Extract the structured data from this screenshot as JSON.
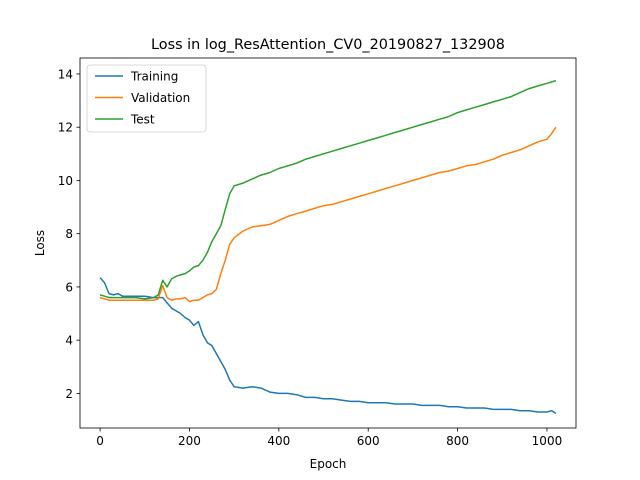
{
  "chart_data": {
    "type": "line",
    "title": "Loss in log_ResAttention_CV0_20190827_132908",
    "xlabel": "Epoch",
    "ylabel": "Loss",
    "xlim": [
      -45,
      1065
    ],
    "ylim": [
      0.7,
      14.6
    ],
    "xticks": [
      0,
      200,
      400,
      600,
      800,
      1000
    ],
    "xtick_labels": [
      "0",
      "200",
      "400",
      "600",
      "800",
      "1000"
    ],
    "yticks": [
      2,
      4,
      6,
      8,
      10,
      12,
      14
    ],
    "ytick_labels": [
      "2",
      "4",
      "6",
      "8",
      "10",
      "12",
      "14"
    ],
    "grid": false,
    "legend_position": "upper-left",
    "series": [
      {
        "name": "Training",
        "color": "#1f77b4",
        "x": [
          0,
          10,
          20,
          30,
          40,
          50,
          60,
          80,
          100,
          120,
          140,
          150,
          160,
          170,
          180,
          190,
          200,
          210,
          220,
          230,
          240,
          250,
          260,
          270,
          280,
          290,
          300,
          320,
          340,
          360,
          380,
          400,
          420,
          440,
          460,
          480,
          500,
          520,
          540,
          560,
          580,
          600,
          620,
          640,
          660,
          680,
          700,
          720,
          740,
          760,
          780,
          800,
          820,
          840,
          860,
          880,
          900,
          920,
          940,
          960,
          980,
          1000,
          1010,
          1020
        ],
        "y": [
          6.35,
          6.15,
          5.75,
          5.7,
          5.75,
          5.65,
          5.65,
          5.65,
          5.65,
          5.6,
          5.6,
          5.4,
          5.2,
          5.1,
          5.0,
          4.85,
          4.75,
          4.55,
          4.7,
          4.2,
          3.9,
          3.8,
          3.5,
          3.2,
          2.9,
          2.5,
          2.25,
          2.2,
          2.25,
          2.2,
          2.05,
          2.0,
          2.0,
          1.95,
          1.85,
          1.85,
          1.8,
          1.8,
          1.75,
          1.7,
          1.7,
          1.65,
          1.65,
          1.65,
          1.6,
          1.6,
          1.6,
          1.55,
          1.55,
          1.55,
          1.5,
          1.5,
          1.45,
          1.45,
          1.45,
          1.4,
          1.4,
          1.4,
          1.35,
          1.35,
          1.3,
          1.3,
          1.35,
          1.25
        ]
      },
      {
        "name": "Validation",
        "color": "#ff7f0e",
        "x": [
          0,
          10,
          20,
          40,
          60,
          80,
          100,
          120,
          130,
          140,
          150,
          160,
          170,
          180,
          190,
          200,
          210,
          220,
          230,
          240,
          250,
          260,
          270,
          280,
          290,
          300,
          320,
          340,
          360,
          380,
          400,
          420,
          440,
          460,
          480,
          500,
          520,
          540,
          560,
          580,
          600,
          620,
          640,
          660,
          680,
          700,
          720,
          740,
          760,
          780,
          800,
          820,
          840,
          860,
          880,
          900,
          920,
          940,
          960,
          980,
          1000,
          1010,
          1020
        ],
        "y": [
          5.6,
          5.55,
          5.5,
          5.5,
          5.5,
          5.5,
          5.5,
          5.5,
          5.55,
          6.05,
          5.6,
          5.5,
          5.55,
          5.55,
          5.6,
          5.45,
          5.5,
          5.5,
          5.6,
          5.7,
          5.75,
          5.9,
          6.5,
          7.0,
          7.6,
          7.85,
          8.1,
          8.25,
          8.3,
          8.35,
          8.5,
          8.65,
          8.75,
          8.85,
          8.95,
          9.05,
          9.1,
          9.2,
          9.3,
          9.4,
          9.5,
          9.6,
          9.7,
          9.8,
          9.9,
          10.0,
          10.1,
          10.2,
          10.3,
          10.35,
          10.45,
          10.55,
          10.6,
          10.7,
          10.8,
          10.95,
          11.05,
          11.15,
          11.3,
          11.45,
          11.55,
          11.75,
          12.0
        ]
      },
      {
        "name": "Test",
        "color": "#2ca02c",
        "x": [
          0,
          10,
          20,
          40,
          60,
          80,
          100,
          120,
          130,
          140,
          150,
          160,
          170,
          180,
          190,
          200,
          210,
          220,
          230,
          240,
          250,
          260,
          270,
          280,
          290,
          300,
          320,
          340,
          360,
          380,
          400,
          420,
          440,
          460,
          480,
          500,
          520,
          540,
          560,
          580,
          600,
          620,
          640,
          660,
          680,
          700,
          720,
          740,
          760,
          780,
          800,
          820,
          840,
          860,
          880,
          900,
          920,
          940,
          960,
          980,
          1000,
          1010,
          1020
        ],
        "y": [
          5.7,
          5.65,
          5.6,
          5.6,
          5.6,
          5.6,
          5.55,
          5.6,
          5.7,
          6.25,
          6.0,
          6.3,
          6.4,
          6.45,
          6.5,
          6.6,
          6.75,
          6.8,
          7.0,
          7.3,
          7.7,
          8.0,
          8.3,
          8.9,
          9.5,
          9.8,
          9.9,
          10.05,
          10.2,
          10.3,
          10.45,
          10.55,
          10.65,
          10.8,
          10.9,
          11.0,
          11.1,
          11.2,
          11.3,
          11.4,
          11.5,
          11.6,
          11.7,
          11.8,
          11.9,
          12.0,
          12.1,
          12.2,
          12.3,
          12.4,
          12.55,
          12.65,
          12.75,
          12.85,
          12.95,
          13.05,
          13.15,
          13.3,
          13.45,
          13.55,
          13.65,
          13.7,
          13.75
        ]
      }
    ]
  }
}
